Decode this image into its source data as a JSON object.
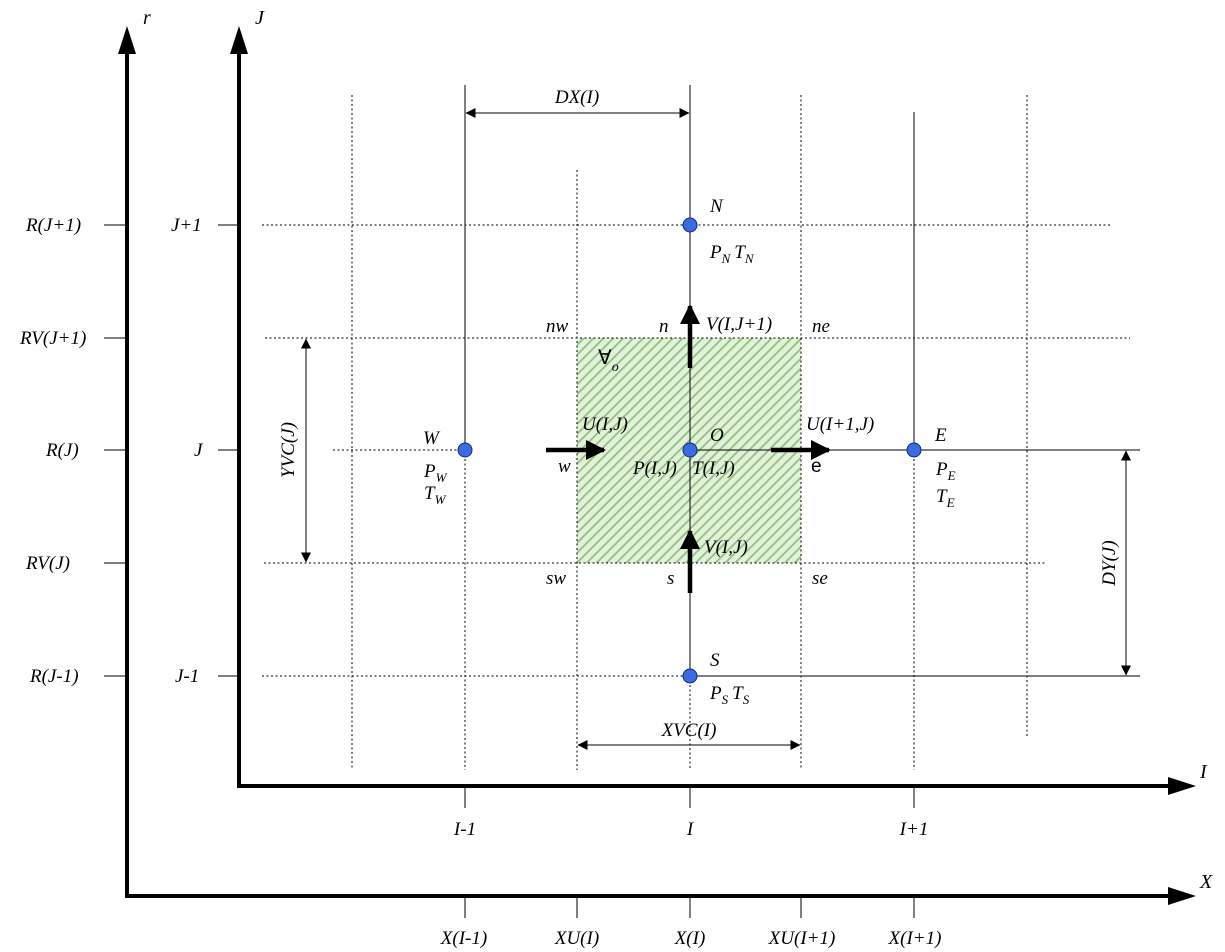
{
  "axes": {
    "outer_vertical": "r",
    "inner_vertical": "J",
    "inner_horizontal": "I",
    "outer_horizontal": "X"
  },
  "r_ticks": [
    "R(J+1)",
    "RV(J+1)",
    "R(J)",
    "RV(J)",
    "R(J-1)"
  ],
  "j_ticks": [
    "J+1",
    "J",
    "J-1"
  ],
  "i_ticks": [
    "I-1",
    "I",
    "I+1"
  ],
  "x_ticks": [
    "X(I-1)",
    "XU(I)",
    "X(I)",
    "XU(I+1)",
    "X(I+1)"
  ],
  "dimensions": {
    "dx": "DX(I)",
    "xvc": "XVC(I)",
    "yvc": "YVC(J)",
    "dy": "DY(J)"
  },
  "nodes": {
    "north": {
      "name": "N",
      "p": "P",
      "p_sub": "N",
      "t": "T",
      "t_sub": "N"
    },
    "west": {
      "name": "W",
      "p": "P",
      "p_sub": "W",
      "t": "T",
      "t_sub": "W"
    },
    "center": {
      "name": "O",
      "p": "P(I,J)",
      "t": "T(I,J)"
    },
    "east": {
      "name": "E",
      "p": "P",
      "p_sub": "E",
      "t": "T",
      "t_sub": "E"
    },
    "south": {
      "name": "S",
      "p": "P",
      "p_sub": "S",
      "t": "T",
      "t_sub": "S"
    }
  },
  "faces": {
    "n": "n",
    "s": "s",
    "w": "w",
    "e": "e",
    "nw": "nw",
    "ne": "ne",
    "sw": "sw",
    "se": "se"
  },
  "velocities": {
    "u_west": "U(I,J)",
    "u_east": "U(I+1,J)",
    "v_north": "V(I,J+1)",
    "v_south": "V(I,J)"
  },
  "volume": {
    "symbol": "∀",
    "sub": "o"
  },
  "colors": {
    "node_fill": "#3a6be0",
    "hatch_fill": "#e3f0da",
    "hatch_line": "#8ec07c"
  }
}
